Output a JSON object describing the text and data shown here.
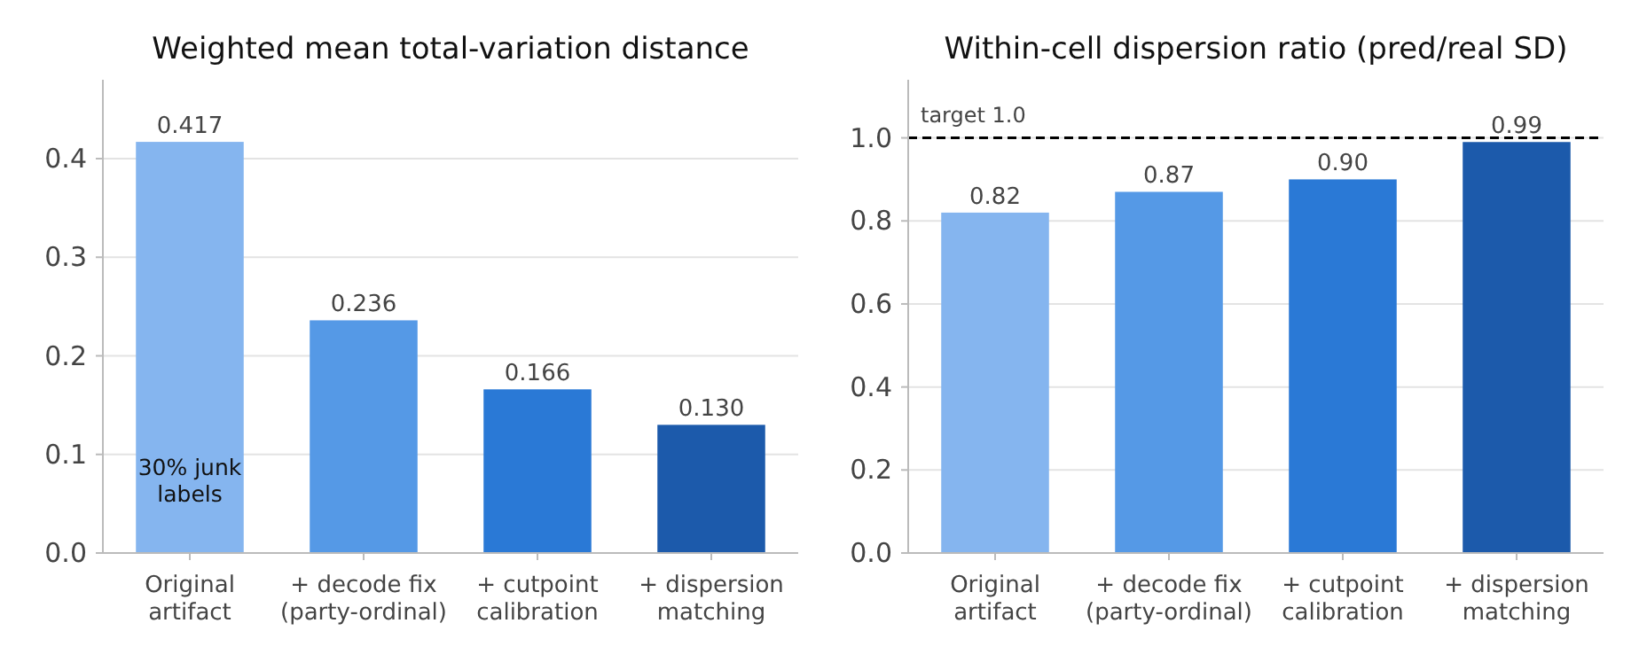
{
  "chart_data": [
    {
      "type": "bar",
      "title": "Weighted mean total-variation distance",
      "categories": [
        "Original\nartifact",
        "+ decode fix\n(party-ordinal)",
        "+ cutpoint\ncalibration",
        "+ dispersion\nmatching"
      ],
      "values": [
        0.417,
        0.236,
        0.166,
        0.13
      ],
      "value_labels": [
        "0.417",
        "0.236",
        "0.166",
        "0.130"
      ],
      "colors": [
        "#85b5ef",
        "#5599e6",
        "#2a79d6",
        "#1c5aab"
      ],
      "ylim": [
        0,
        0.48
      ],
      "yticks": [
        {
          "value": 0,
          "label": "0.0"
        },
        0.1,
        0.2,
        0.3,
        0.4
      ],
      "grid": "y",
      "annotations": [
        "30% junk\nlabels"
      ]
    },
    {
      "type": "bar",
      "title": "Within-cell dispersion ratio (pred/real SD)",
      "categories": [
        "Original\nartifact",
        "+ decode fix\n(party-ordinal)",
        "+ cutpoint\ncalibration",
        "+ dispersion\nmatching"
      ],
      "values": [
        0.82,
        0.87,
        0.9,
        0.99
      ],
      "value_labels": [
        "0.82",
        "0.87",
        "0.90",
        "0.99"
      ],
      "colors": [
        "#85b5ef",
        "#5599e6",
        "#2a79d6",
        "#1c5aab"
      ],
      "ylim": [
        0,
        1.14
      ],
      "yticks": [
        {
          "value": 0,
          "label": "0.0"
        },
        {
          "value": 0.2,
          "label": "0.2"
        },
        {
          "value": 0.4,
          "label": "0.4"
        },
        {
          "value": 0.6,
          "label": "0.6"
        },
        {
          "value": 0.8,
          "label": "0.8"
        },
        {
          "value": 1,
          "label": "1.0"
        }
      ],
      "grid": "y",
      "ref_lines": [
        {
          "axis": "y",
          "value": 1,
          "label": "target 1.0",
          "color": "#000000",
          "line_style": "dashed"
        }
      ]
    }
  ]
}
